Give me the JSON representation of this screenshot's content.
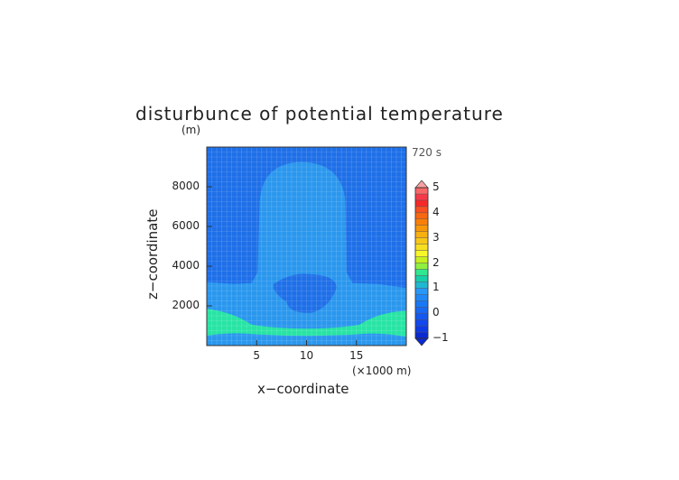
{
  "chart_data": {
    "type": "heatmap",
    "title": "disturbunce of potential temperature",
    "ylabel_unit": "(m)",
    "time_label": "720 s",
    "xlabel": "x−coordinate",
    "ylabel": "z−coordinate",
    "x_unit": "(×1000 m)",
    "xlim": [
      0,
      20
    ],
    "ylim": [
      0,
      10000
    ],
    "x_ticks": [
      5,
      10,
      15
    ],
    "y_ticks": [
      2000,
      4000,
      6000,
      8000
    ],
    "x_tick_labels": [
      "5",
      "10",
      "15"
    ],
    "y_tick_labels": [
      "2000",
      "4000",
      "6000",
      "8000"
    ],
    "grid": true,
    "colorbar": {
      "min": -1,
      "max": 5,
      "step": 0.25,
      "tick_labels": [
        "5",
        "4",
        "3",
        "2",
        "1",
        "0",
        "−1"
      ],
      "colors": [
        "#0a2ad2",
        "#0c3ae6",
        "#1048ee",
        "#1458f0",
        "#1868f2",
        "#1878f4",
        "#2088f6",
        "#2898f8",
        "#20b8d0",
        "#18d0a8",
        "#30e890",
        "#90f040",
        "#c8f020",
        "#f8f828",
        "#f8e020",
        "#f8c818",
        "#f8b010",
        "#f89808",
        "#f88008",
        "#f86810",
        "#f85020",
        "#f82828",
        "#f83848",
        "#f86868",
        "#f8a0a0"
      ]
    },
    "regions": [
      {
        "name": "background",
        "value": -0.4,
        "color": "#1e6fe8"
      },
      {
        "name": "central-plume",
        "value": -0.15,
        "color": "#2a97ee"
      },
      {
        "name": "low-level-band",
        "value": 0.1,
        "color": "#2a97ee"
      },
      {
        "name": "inner-core",
        "value": -0.4,
        "color": "#1e6fe8"
      },
      {
        "name": "surface-warm-layer",
        "value": 0.6,
        "color": "#28e4a4"
      },
      {
        "name": "surface-strip",
        "value": 0.1,
        "color": "#2a97ee"
      }
    ]
  }
}
